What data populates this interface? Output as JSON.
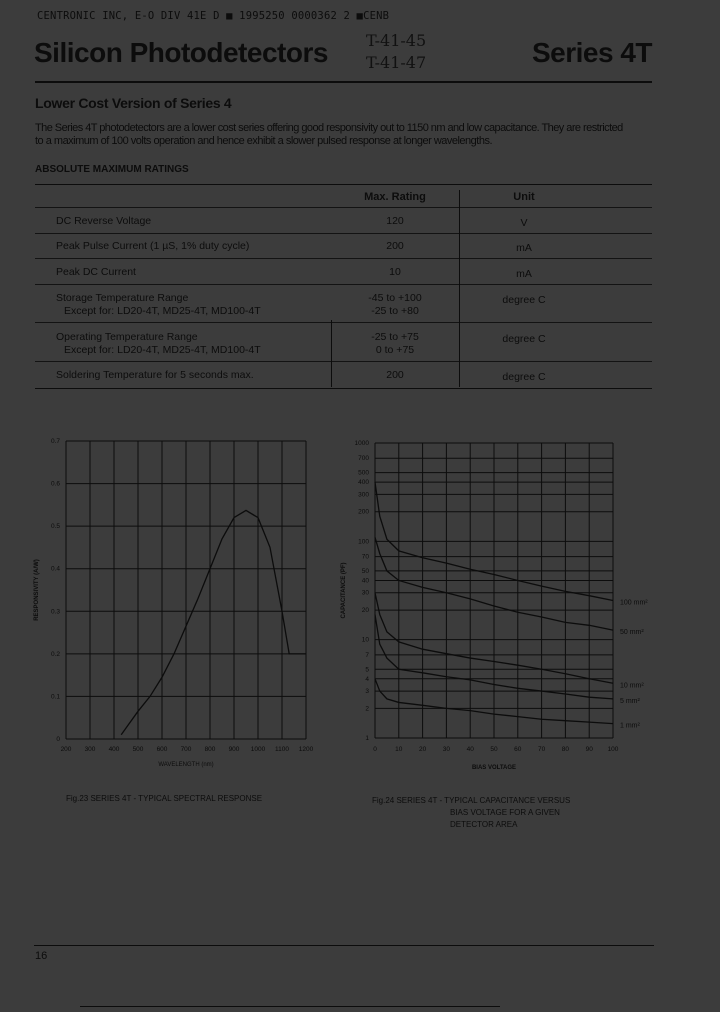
{
  "header": {
    "scan_line": "CENTRONIC INC, E-O DIV    41E D  ■ 1995250 0000362 2 ■CENB",
    "title": "Silicon Photodetectors",
    "handwritten_1": "T-41-45",
    "handwritten_2": "T-41-47",
    "series": "Series 4T"
  },
  "intro": {
    "heading": "Lower Cost Version of Series 4",
    "line1": "The Series 4T photodetectors are a lower cost series offering good responsivity out to 1150 nm and low capacitance. They are restricted",
    "line2": "to a maximum of 100 volts operation and hence exhibit a slower pulsed response at longer wavelengths."
  },
  "ratings": {
    "heading": "ABSOLUTE MAXIMUM RATINGS",
    "col_rating": "Max. Rating",
    "col_unit": "Unit",
    "rows": [
      {
        "param": "DC Reverse  Voltage",
        "sub": "",
        "rating": "120",
        "rating2": "",
        "unit": "V"
      },
      {
        "param": "Peak Pulse Current  (1 µS, 1% duty cycle)",
        "sub": "",
        "rating": "200",
        "rating2": "",
        "unit": "mA"
      },
      {
        "param": "Peak DC Current",
        "sub": "",
        "rating": "10",
        "rating2": "",
        "unit": "mA"
      },
      {
        "param": "Storage Temperature Range",
        "sub": "Except for:  LD20-4T, MD25-4T, MD100-4T",
        "rating": "-45 to +100",
        "rating2": "-25 to +80",
        "unit": "degree C"
      },
      {
        "param": "Operating Temperature Range",
        "sub": "Except for:  LD20-4T, MD25-4T, MD100-4T",
        "rating": "-25 to +75",
        "rating2": "0 to +75",
        "unit": "degree C"
      },
      {
        "param": "Soldering Temperature for 5 seconds max.",
        "sub": "",
        "rating": "200",
        "rating2": "",
        "unit": "degree C"
      }
    ]
  },
  "chart_data": [
    {
      "type": "line",
      "caption": "Fig.23   SERIES 4T - TYPICAL SPECTRAL RESPONSE",
      "xlabel": "WAVELENGTH (nm)",
      "ylabel": "RESPONSIVITY (A/W)",
      "xlim": [
        200,
        1200
      ],
      "ylim": [
        0,
        0.7
      ],
      "xticks": [
        "200",
        "300",
        "400",
        "500",
        "600",
        "700",
        "800",
        "900",
        "1000",
        "1100",
        "1200"
      ],
      "yticks": [
        "0",
        "0.1",
        "0.2",
        "0.3",
        "0.4",
        "0.5",
        "0.6",
        "0.7"
      ],
      "grid": true,
      "x": [
        430,
        500,
        550,
        600,
        650,
        700,
        750,
        800,
        850,
        900,
        950,
        1000,
        1050,
        1100,
        1130,
        1200
      ],
      "y": [
        0.01,
        0.065,
        0.1,
        0.145,
        0.2,
        0.265,
        0.33,
        0.4,
        0.47,
        0.52,
        0.537,
        0.52,
        0.45,
        0.3,
        0.2,
        0.2
      ]
    },
    {
      "type": "line",
      "caption_lines": [
        "Fig.24   SERIES 4T - TYPICAL CAPACITANCE VERSUS",
        "BIAS VOLTAGE FOR A GIVEN",
        "DETECTOR AREA"
      ],
      "xlabel": "BIAS VOLTAGE",
      "ylabel": "CAPACITANCE (PF)",
      "xlim": [
        0,
        100
      ],
      "ylim": [
        1,
        1000
      ],
      "yscale": "log",
      "xticks": [
        "0",
        "10",
        "20",
        "30",
        "40",
        "50",
        "60",
        "70",
        "80",
        "90",
        "100"
      ],
      "yticks": [
        "1000",
        "700",
        "500",
        "400",
        "300",
        "200",
        "100",
        "70",
        "50",
        "40",
        "30",
        "20",
        "10",
        "7",
        "5",
        "4",
        "3",
        "2",
        "1"
      ],
      "grid": true,
      "x": [
        0,
        2,
        5,
        10,
        20,
        30,
        40,
        50,
        60,
        70,
        80,
        90,
        100
      ],
      "series": [
        {
          "name": "100 mm²",
          "values": [
            400,
            180,
            105,
            80,
            68,
            60,
            52,
            46,
            40,
            35,
            31,
            28,
            25
          ]
        },
        {
          "name": "50 mm²",
          "values": [
            110,
            75,
            50,
            40,
            34,
            30,
            26,
            22,
            19,
            17,
            15,
            14,
            12.5
          ]
        },
        {
          "name": "10 mm²",
          "values": [
            30,
            18,
            12,
            9.5,
            8,
            7.2,
            6.5,
            6,
            5.5,
            5,
            4.5,
            4,
            3.6
          ]
        },
        {
          "name": "5 mm²",
          "values": [
            18,
            9,
            6.5,
            5,
            4.6,
            4.2,
            3.9,
            3.5,
            3.2,
            3,
            2.8,
            2.6,
            2.5
          ]
        },
        {
          "name": "1 mm²",
          "values": [
            4,
            3,
            2.5,
            2.3,
            2.15,
            2,
            1.9,
            1.75,
            1.65,
            1.55,
            1.5,
            1.45,
            1.4
          ]
        }
      ]
    }
  ],
  "footer": {
    "page_number": "16"
  },
  "colors": {
    "paper": "#3c3c3c",
    "ink": "#0c0c0c"
  }
}
